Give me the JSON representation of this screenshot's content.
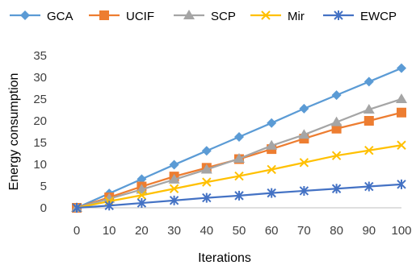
{
  "chart_data": {
    "type": "line",
    "x": [
      0,
      10,
      20,
      30,
      40,
      50,
      60,
      70,
      80,
      90,
      100
    ],
    "xlabel": "Iterations",
    "ylabel": "Energy consumption",
    "ylim": [
      0,
      35
    ],
    "yticks": [
      0,
      5,
      10,
      15,
      20,
      25,
      30,
      35
    ],
    "grid": false,
    "legend_position": "top",
    "series": [
      {
        "name": "GCA",
        "color": "#5B9BD5",
        "marker": "diamond",
        "values": [
          0,
          3.3,
          6.6,
          9.9,
          13.1,
          16.3,
          19.5,
          22.8,
          25.9,
          29.0,
          32.1
        ]
      },
      {
        "name": "UCIF",
        "color": "#ED7D31",
        "marker": "square",
        "values": [
          0,
          2.4,
          4.9,
          7.2,
          9.2,
          11.2,
          13.5,
          15.9,
          18.2,
          20.0,
          21.9
        ]
      },
      {
        "name": "SCP",
        "color": "#A5A5A5",
        "marker": "triangle",
        "values": [
          0,
          2.1,
          4.2,
          6.5,
          8.8,
          11.3,
          14.3,
          16.8,
          19.7,
          22.6,
          25.0
        ]
      },
      {
        "name": "Mir",
        "color": "#FFC000",
        "marker": "x",
        "values": [
          0,
          1.5,
          2.9,
          4.4,
          5.9,
          7.3,
          8.8,
          10.4,
          12.0,
          13.2,
          14.4
        ]
      },
      {
        "name": "EWCP",
        "color": "#4472C4",
        "marker": "star",
        "values": [
          0,
          0.5,
          1.1,
          1.7,
          2.3,
          2.8,
          3.4,
          3.9,
          4.4,
          4.9,
          5.4
        ]
      }
    ]
  }
}
